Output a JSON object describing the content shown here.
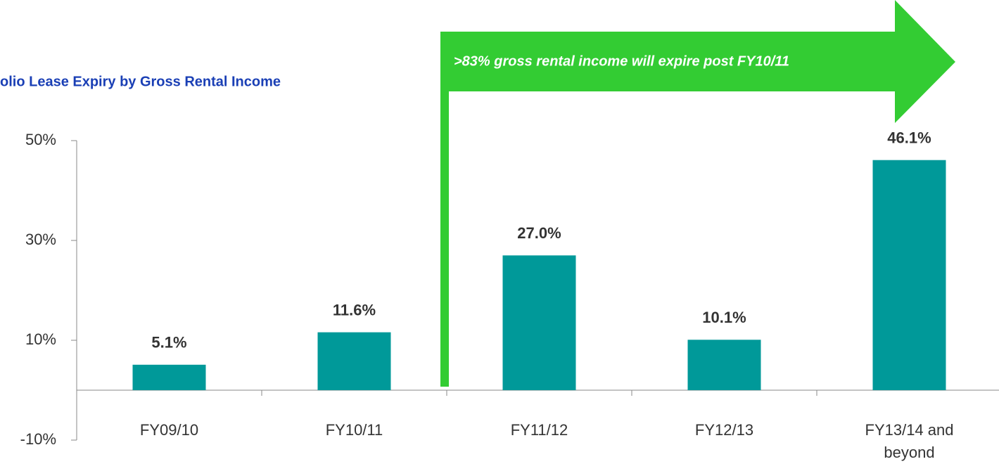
{
  "chart_data": {
    "type": "bar",
    "title": "olio Lease Expiry by Gross Rental Income",
    "annotation": ">83%  gross rental income will expire post FY10/11",
    "categories": [
      "FY09/10",
      "FY10/11",
      "FY11/12",
      "FY12/13",
      "FY13/14 and beyond"
    ],
    "values": [
      5.1,
      11.6,
      27.0,
      10.1,
      46.1
    ],
    "value_labels": [
      "5.1%",
      "11.6%",
      "27.0%",
      "10.1%",
      "46.1%"
    ],
    "color": "#009999",
    "ylim": [
      -10,
      50
    ],
    "yticks": [
      {
        "value": -10,
        "label": "-10%"
      },
      {
        "value": 10,
        "label": "10%"
      },
      {
        "value": 30,
        "label": "30%"
      },
      {
        "value": 50,
        "label": "50%"
      }
    ],
    "grid": false
  }
}
